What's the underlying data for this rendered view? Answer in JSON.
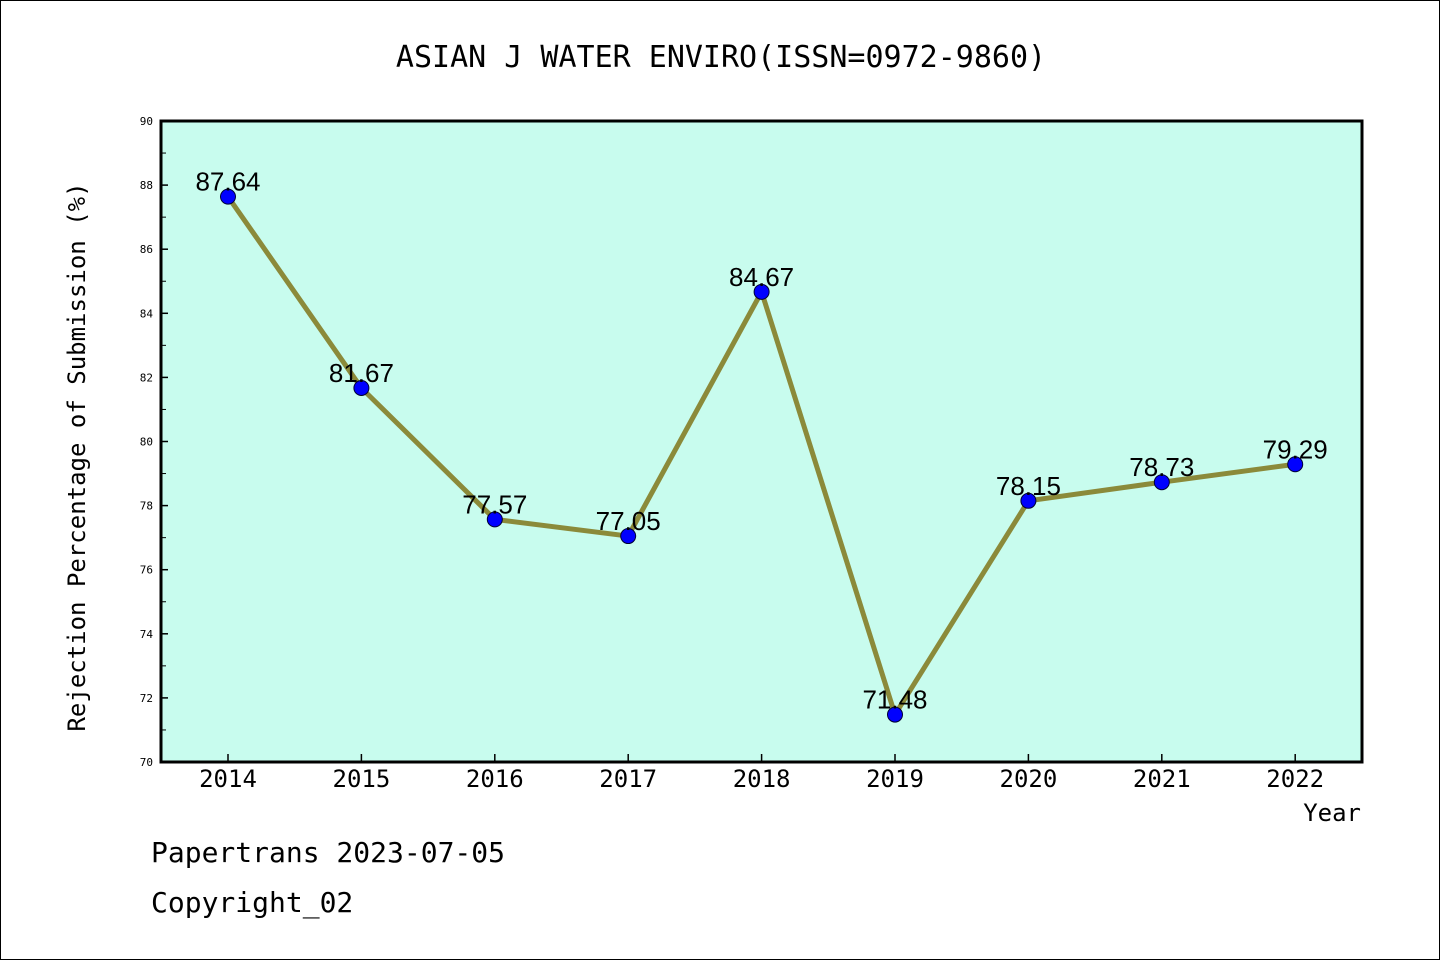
{
  "chart_data": {
    "type": "line",
    "title": "ASIAN J WATER ENVIRO(ISSN=0972-9860)",
    "xlabel": "Year",
    "ylabel": "Rejection Percentage of Submission (%)",
    "categories": [
      "2014",
      "2015",
      "2016",
      "2017",
      "2018",
      "2019",
      "2020",
      "2021",
      "2022"
    ],
    "values": [
      87.64,
      81.67,
      77.57,
      77.05,
      84.67,
      71.48,
      78.15,
      78.73,
      79.29
    ],
    "data_labels": [
      "87.64",
      "81.67",
      "77.57",
      "77.05",
      "84.67",
      "71.48",
      "78.15",
      "78.73",
      "79.29"
    ],
    "ylim": [
      70,
      90
    ],
    "yticks": [
      "70",
      "72",
      "74",
      "76",
      "78",
      "80",
      "82",
      "84",
      "86",
      "88",
      "90"
    ],
    "grid": false,
    "legend": "none",
    "colors": {
      "plot_background": "#c8fcee",
      "line": "#8b8a3a",
      "marker": "#0000ff",
      "axis": "#000000"
    }
  },
  "footer": {
    "source": "Papertrans 2023-07-05",
    "copyright": "Copyright_02"
  }
}
